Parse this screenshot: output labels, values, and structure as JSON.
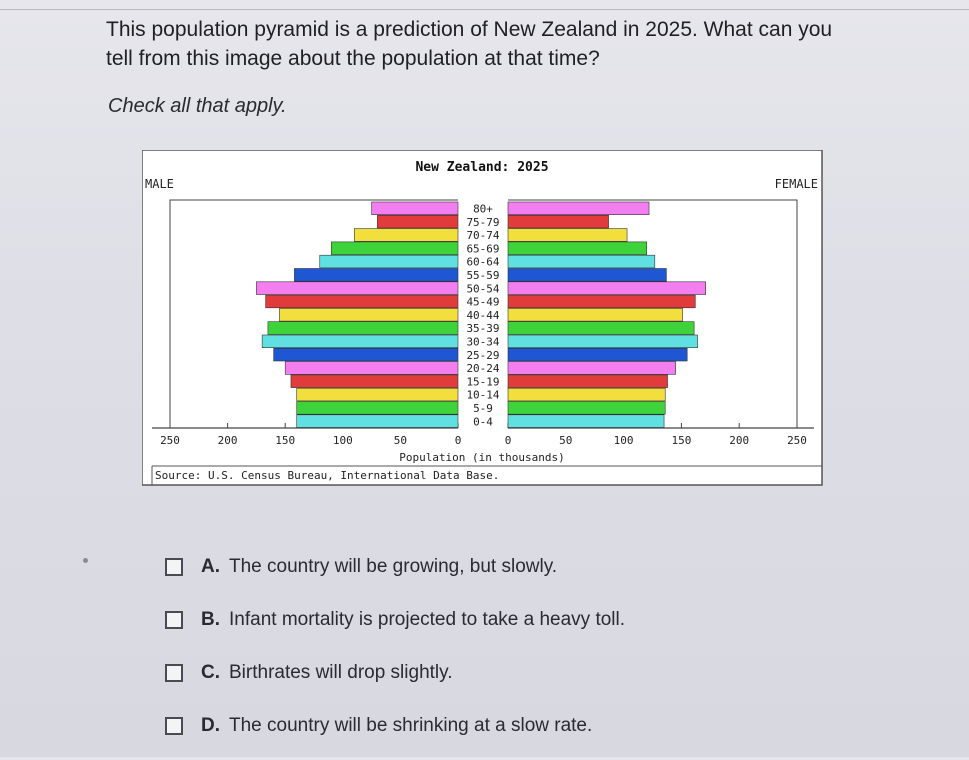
{
  "question": {
    "text": "This population pyramid is a prediction of New Zealand in 2025. What can you tell from this image about the population at that time?",
    "instruction": "Check all that apply."
  },
  "chart_data": {
    "type": "population-pyramid",
    "title": "New Zealand: 2025",
    "left_label": "MALE",
    "right_label": "FEMALE",
    "xlabel": "Population (in thousands)",
    "source": "Source: U.S. Census Bureau, International Data Base.",
    "xlim": [
      0,
      250
    ],
    "xticks": [
      250,
      200,
      150,
      100,
      50,
      0
    ],
    "age_groups": [
      "80+",
      "75-79",
      "70-74",
      "65-69",
      "60-64",
      "55-59",
      "50-54",
      "45-49",
      "40-44",
      "35-39",
      "30-34",
      "25-29",
      "20-24",
      "15-19",
      "10-14",
      "5-9",
      "0-4"
    ],
    "series": [
      {
        "name": "MALE",
        "values": [
          75,
          70,
          90,
          110,
          120,
          142,
          175,
          167,
          155,
          165,
          170,
          160,
          150,
          145,
          140,
          140,
          140
        ]
      },
      {
        "name": "FEMALE",
        "values": [
          122,
          87,
          103,
          120,
          127,
          137,
          171,
          162,
          151,
          161,
          164,
          155,
          145,
          138,
          136,
          136,
          135
        ]
      },
      {
        "name": "bar_colors",
        "values": [
          "#f37ef0",
          "#e23b3b",
          "#f2de3c",
          "#3fd33b",
          "#60e0e0",
          "#1e56d4"
        ]
      }
    ]
  },
  "choices": [
    {
      "letter": "A.",
      "text": "The country will be growing, but slowly."
    },
    {
      "letter": "B.",
      "text": "Infant mortality is projected to take a heavy toll."
    },
    {
      "letter": "C.",
      "text": "Birthrates will drop slightly."
    },
    {
      "letter": "D.",
      "text": "The country will be shrinking at a slow rate."
    }
  ]
}
